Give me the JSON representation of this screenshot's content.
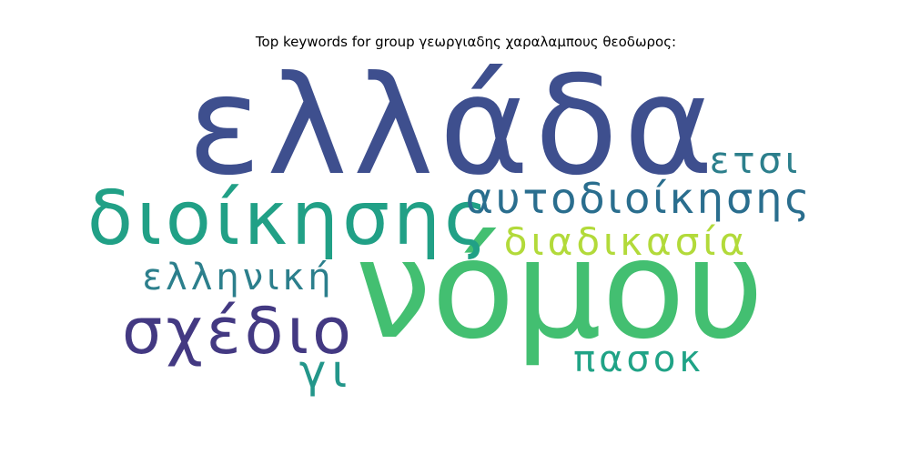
{
  "chart_data": {
    "type": "wordcloud",
    "title": "Top keywords for group γεωργιαδης χαραλαμπους θεοδωρος:",
    "words": [
      {
        "text": "ελλάδα",
        "weight": 1.0,
        "color": "#3e4f8e"
      },
      {
        "text": "νόμου",
        "weight": 1.0,
        "color": "#43bf71"
      },
      {
        "text": "διοίκησης",
        "weight": 0.55,
        "color": "#21a086"
      },
      {
        "text": "αυτοδιοίκησης",
        "weight": 0.4,
        "color": "#2a6e8e"
      },
      {
        "text": "σχέδιο",
        "weight": 0.5,
        "color": "#433982"
      },
      {
        "text": "διαδικασία",
        "weight": 0.35,
        "color": "#b2da3a"
      },
      {
        "text": "ελληνική",
        "weight": 0.32,
        "color": "#2c7f8c"
      },
      {
        "text": "ετσι",
        "weight": 0.32,
        "color": "#2c7f8c"
      },
      {
        "text": "πασοκ",
        "weight": 0.32,
        "color": "#20a386"
      },
      {
        "text": "γι",
        "weight": 0.3,
        "color": "#23968a"
      }
    ]
  }
}
